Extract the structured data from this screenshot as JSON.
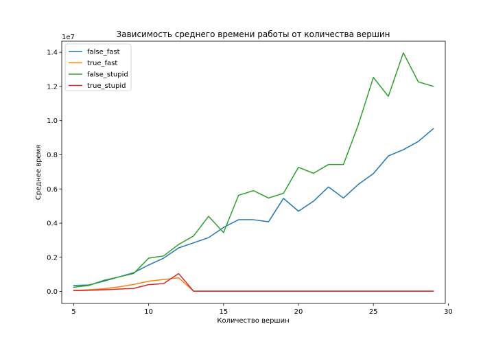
{
  "chart_data": {
    "type": "line",
    "title": "Зависимость среднего времени работы от количества вершин",
    "xlabel": "Количество вершин",
    "ylabel": "Среднее время",
    "offset_text": "1e7",
    "xlim": [
      4.2,
      29.8
    ],
    "ylim": [
      -0.07,
      1.465
    ],
    "x_ticks": [
      5,
      10,
      15,
      20,
      25,
      30
    ],
    "y_ticks": [
      0.0,
      0.2,
      0.4,
      0.6,
      0.8,
      1.0,
      1.2,
      1.4
    ],
    "y_tick_labels": [
      "0.0",
      "0.2",
      "0.4",
      "0.6",
      "0.8",
      "1.0",
      "1.2",
      "1.4"
    ],
    "grid": false,
    "legend": "top-left",
    "x": [
      5,
      6,
      7,
      8,
      9,
      10,
      11,
      12,
      13,
      14,
      15,
      16,
      17,
      18,
      19,
      20,
      21,
      22,
      23,
      24,
      25,
      26,
      27,
      28,
      29
    ],
    "series": [
      {
        "name": "false_fast",
        "color": "#1f77b4",
        "values": [
          0.035,
          0.038,
          0.06,
          0.085,
          0.11,
          0.155,
          0.195,
          0.255,
          0.285,
          0.315,
          0.375,
          0.42,
          0.42,
          0.408,
          0.545,
          0.47,
          0.528,
          0.612,
          0.547,
          0.627,
          0.69,
          0.793,
          0.83,
          0.878,
          0.953
        ]
      },
      {
        "name": "true_fast",
        "color": "#ff7f0e",
        "values": [
          0.006,
          0.01,
          0.016,
          0.027,
          0.041,
          0.06,
          0.07,
          0.08,
          0.002,
          0.002,
          0.002,
          0.002,
          0.002,
          0.002,
          0.002,
          0.002,
          0.002,
          0.002,
          0.002,
          0.002,
          0.002,
          0.002,
          0.002,
          0.002,
          0.002
        ]
      },
      {
        "name": "false_stupid",
        "color": "#2ca02c",
        "values": [
          0.025,
          0.035,
          0.065,
          0.085,
          0.105,
          0.195,
          0.208,
          0.275,
          0.325,
          0.44,
          0.345,
          0.563,
          0.59,
          0.547,
          0.575,
          0.727,
          0.692,
          0.743,
          0.743,
          0.977,
          1.253,
          1.142,
          1.397,
          1.227,
          1.201
        ]
      },
      {
        "name": "true_stupid",
        "color": "#d62728",
        "values": [
          0.005,
          0.007,
          0.01,
          0.014,
          0.018,
          0.04,
          0.046,
          0.105,
          0.002,
          0.002,
          0.002,
          0.002,
          0.002,
          0.002,
          0.002,
          0.002,
          0.002,
          0.002,
          0.002,
          0.002,
          0.002,
          0.002,
          0.002,
          0.002,
          0.002
        ]
      }
    ]
  }
}
